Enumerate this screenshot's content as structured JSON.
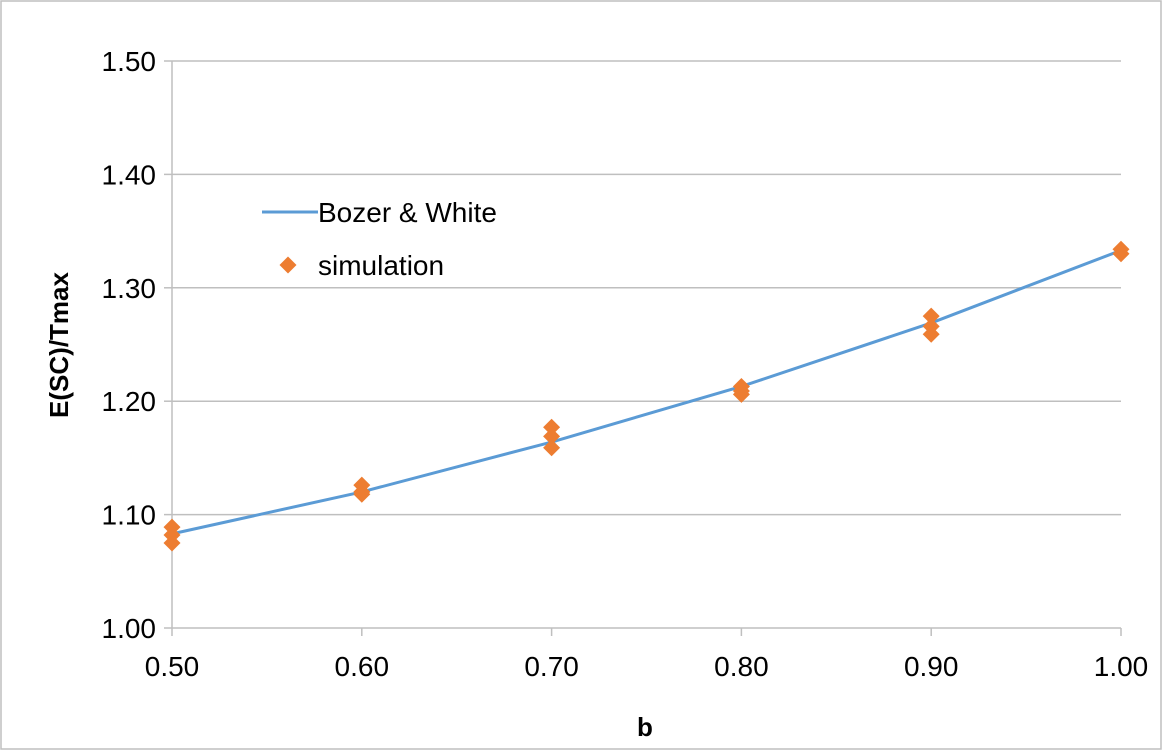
{
  "chart_data": {
    "type": "scatter",
    "title": "",
    "xlabel": "b",
    "ylabel": "E(SC)/Tmax",
    "xlim": [
      0.5,
      1.0
    ],
    "ylim": [
      1.0,
      1.5
    ],
    "x_ticks": [
      "0.50",
      "0.60",
      "0.70",
      "0.80",
      "0.90",
      "1.00"
    ],
    "y_ticks": [
      "1.00",
      "1.10",
      "1.20",
      "1.30",
      "1.40",
      "1.50"
    ],
    "grid": "horizontal",
    "legend_position": "upper-left",
    "series": [
      {
        "name": "Bozer & White",
        "type": "line",
        "color": "#5b9bd5",
        "x": [
          0.5,
          0.6,
          0.7,
          0.8,
          0.9,
          1.0
        ],
        "y": [
          1.083,
          1.12,
          1.164,
          1.213,
          1.269,
          1.333
        ]
      },
      {
        "name": "simulation",
        "type": "scatter",
        "marker": "diamond",
        "color": "#ed7d31",
        "x": [
          0.5,
          0.5,
          0.5,
          0.6,
          0.6,
          0.6,
          0.7,
          0.7,
          0.7,
          0.8,
          0.8,
          0.8,
          0.9,
          0.9,
          0.9,
          1.0,
          1.0
        ],
        "y": [
          1.075,
          1.082,
          1.089,
          1.118,
          1.12,
          1.126,
          1.159,
          1.169,
          1.177,
          1.206,
          1.209,
          1.213,
          1.259,
          1.266,
          1.275,
          1.33,
          1.334
        ]
      }
    ]
  }
}
